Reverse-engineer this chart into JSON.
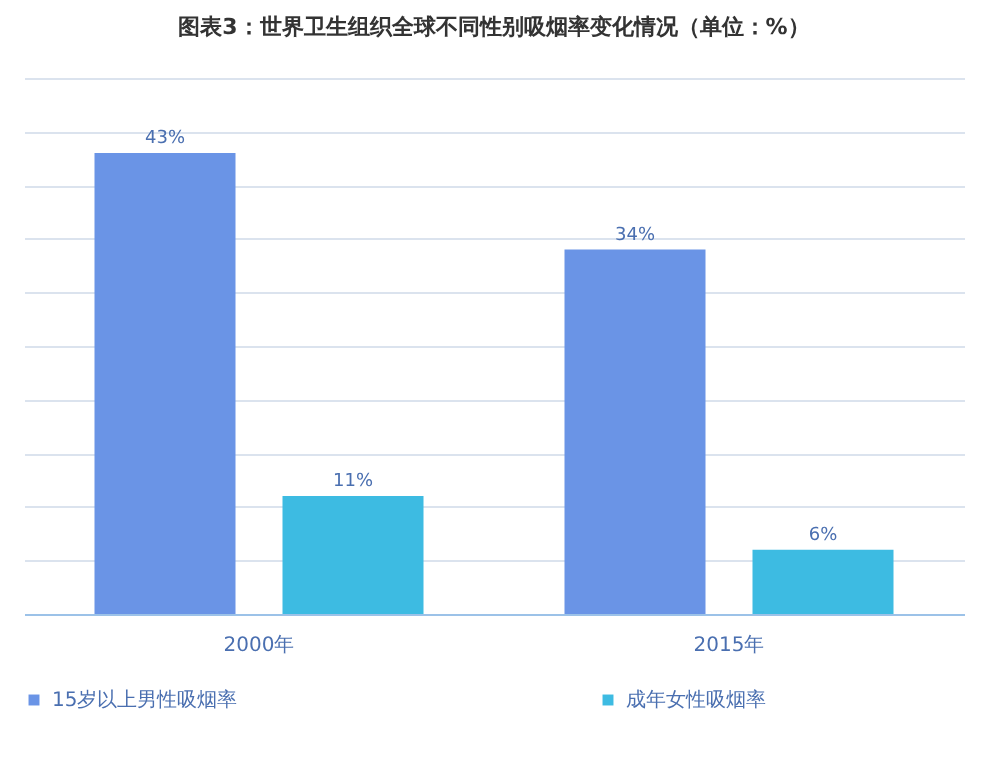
{
  "chart_data": {
    "type": "bar",
    "title": "图表3：世界卫生组织全球不同性别吸烟率变化情况（单位：%）",
    "categories": [
      "2000年",
      "2015年"
    ],
    "series": [
      {
        "name": "15岁以上男性吸烟率",
        "color": "#6a94e6",
        "values": [
          43,
          34
        ],
        "value_labels": [
          "43%",
          "34%"
        ]
      },
      {
        "name": "成年女性吸烟率",
        "color": "#3dbbe2",
        "values": [
          11,
          6
        ],
        "value_labels": [
          "11%",
          "6%"
        ]
      }
    ],
    "ylim": [
      0,
      50
    ],
    "yticks": [
      0,
      5,
      10,
      15,
      20,
      25,
      30,
      35,
      40,
      45,
      50
    ],
    "grid": "y",
    "tick_labels": "x",
    "legend": "bottom"
  }
}
